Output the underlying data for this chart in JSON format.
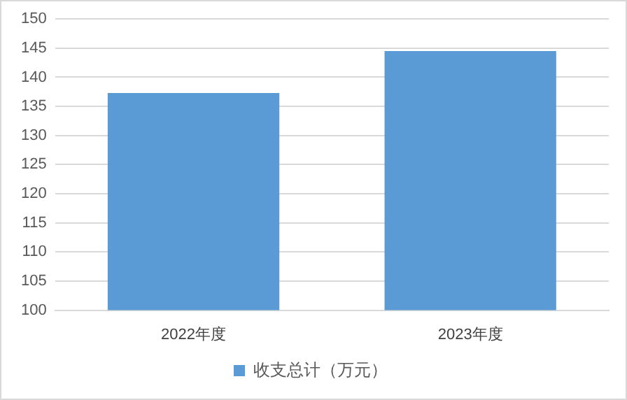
{
  "chart_data": {
    "type": "bar",
    "categories": [
      "2022年度",
      "2023年度"
    ],
    "series": [
      {
        "name": "收支总计（万元）",
        "color": "#5b9bd5",
        "values": [
          137.3,
          144.5
        ]
      }
    ],
    "ylim": [
      100,
      150
    ],
    "yticks": [
      100,
      105,
      110,
      115,
      120,
      125,
      130,
      135,
      140,
      145,
      150
    ],
    "grid": "y",
    "legend": "bottom"
  }
}
